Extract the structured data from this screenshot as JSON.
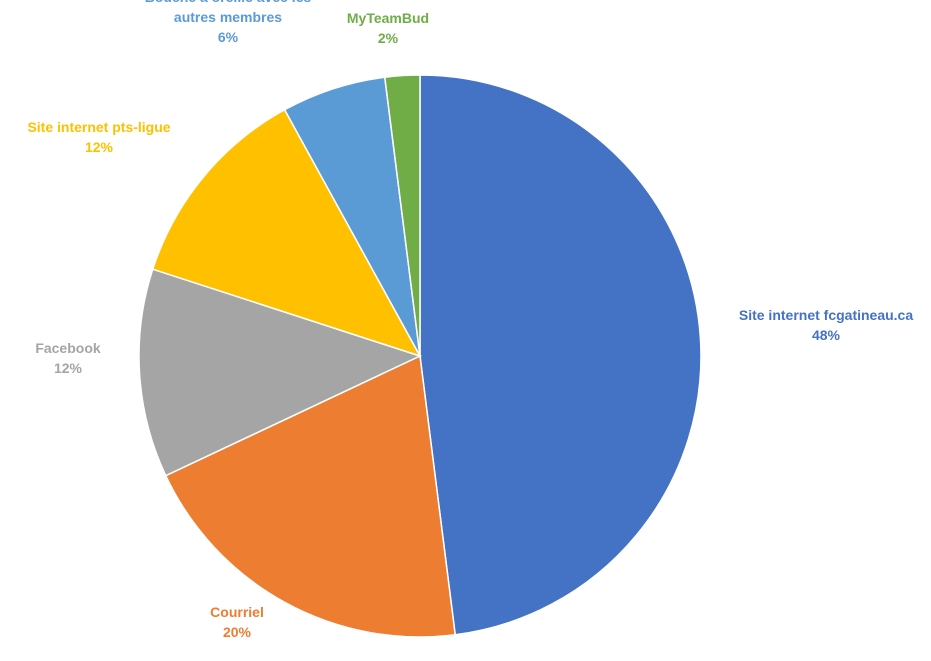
{
  "chart_data": {
    "type": "pie",
    "title": "",
    "start_angle_deg": 0,
    "direction": "clockwise",
    "slices": [
      {
        "label_lines": [
          "Site internet fcgatineau.ca"
        ],
        "percent_label": "48%",
        "value": 48,
        "color": "#4472C4"
      },
      {
        "label_lines": [
          "Courriel"
        ],
        "percent_label": "20%",
        "value": 20,
        "color": "#ED7D31"
      },
      {
        "label_lines": [
          "Facebook"
        ],
        "percent_label": "12%",
        "value": 12,
        "color": "#A5A5A5"
      },
      {
        "label_lines": [
          "Site internet pts-ligue"
        ],
        "percent_label": "12%",
        "value": 12,
        "color": "#FFC000"
      },
      {
        "label_lines": [
          "Bouche à oreille avec les",
          "autres membres"
        ],
        "percent_label": "6%",
        "value": 6,
        "color": "#5B9BD5"
      },
      {
        "label_lines": [
          "MyTeamBud"
        ],
        "percent_label": "2%",
        "value": 2,
        "color": "#70AD47"
      }
    ],
    "legend": "none"
  }
}
